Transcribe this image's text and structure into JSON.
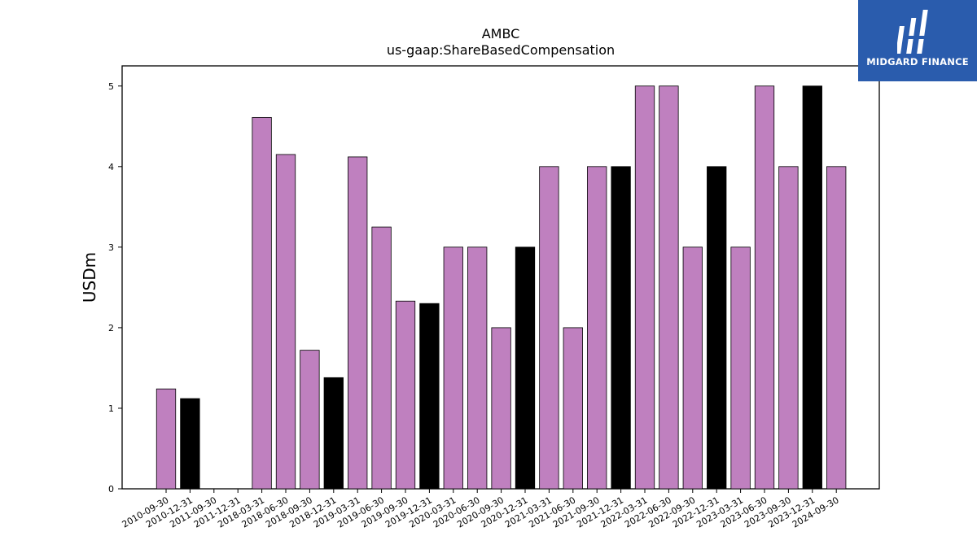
{
  "logo": {
    "text": "MIDGARD FINANCE",
    "icon": "midgard-logo-icon",
    "background": "#2a5cad"
  },
  "chart_data": {
    "type": "bar",
    "title": "AMBC",
    "subtitle": "us-gaap:ShareBasedCompensation",
    "xlabel": "",
    "ylabel": "USDm",
    "ylim": [
      0,
      5.25
    ],
    "yticks": [
      0,
      1,
      2,
      3,
      4,
      5
    ],
    "grid": false,
    "colors": {
      "quarter": "#bf80bf",
      "year_end": "#000000"
    },
    "categories": [
      "2010-09-30",
      "2010-12-31",
      "2011-09-30",
      "2011-12-31",
      "2018-03-31",
      "2018-06-30",
      "2018-09-30",
      "2018-12-31",
      "2019-03-31",
      "2019-06-30",
      "2019-09-30",
      "2019-12-31",
      "2020-03-31",
      "2020-06-30",
      "2020-09-30",
      "2020-12-31",
      "2021-03-31",
      "2021-06-30",
      "2021-09-30",
      "2021-12-31",
      "2022-03-31",
      "2022-06-30",
      "2022-09-30",
      "2022-12-31",
      "2023-03-31",
      "2023-06-30",
      "2023-09-30",
      "2023-12-31",
      "2024-09-30"
    ],
    "values": [
      1.24,
      1.12,
      0,
      0,
      4.61,
      4.15,
      1.72,
      1.38,
      4.12,
      3.25,
      2.33,
      2.3,
      3,
      3,
      2,
      3,
      4,
      2,
      4,
      4,
      5,
      5,
      3,
      4,
      3,
      5,
      4,
      5,
      4
    ]
  }
}
